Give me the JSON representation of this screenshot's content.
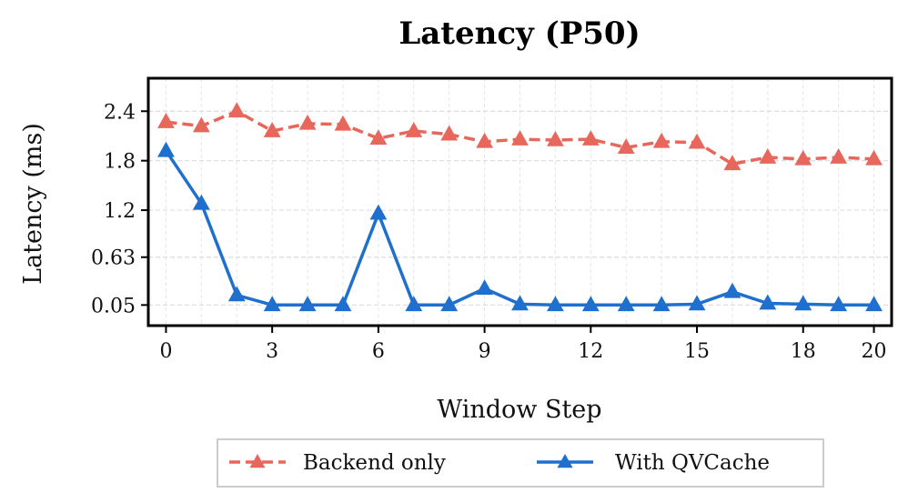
{
  "chart_data": {
    "type": "line",
    "title": "Latency (P50)",
    "xlabel": "Window Step",
    "ylabel": "Latency (ms)",
    "x": [
      0,
      1,
      2,
      3,
      4,
      5,
      6,
      7,
      8,
      9,
      10,
      11,
      12,
      13,
      14,
      15,
      16,
      17,
      18,
      19,
      20
    ],
    "xlim": [
      -0.5,
      20.5
    ],
    "ylim": [
      -0.2,
      2.8
    ],
    "xticks": [
      0,
      3,
      6,
      9,
      12,
      15,
      18,
      20
    ],
    "xtick_labels": [
      "0",
      "3",
      "6",
      "9",
      "12",
      "15",
      "18",
      "20"
    ],
    "yticks": [
      0.05,
      0.63,
      1.2,
      1.8,
      2.4
    ],
    "ytick_labels": [
      "0.05",
      "0.63",
      "1.2",
      "1.8",
      "2.4"
    ],
    "grid": true,
    "legend_position": "bottom-center",
    "series": [
      {
        "name": "Backend only",
        "color": "#e8675c",
        "line_style": "dashed",
        "marker": "triangle",
        "values": [
          2.27,
          2.22,
          2.4,
          2.16,
          2.25,
          2.24,
          2.07,
          2.16,
          2.12,
          2.03,
          2.06,
          2.05,
          2.06,
          1.96,
          2.03,
          2.02,
          1.76,
          1.84,
          1.82,
          1.84,
          1.82
        ]
      },
      {
        "name": "With QVCache",
        "color": "#1f6fcf",
        "line_style": "solid",
        "marker": "triangle",
        "values": [
          1.92,
          1.28,
          0.17,
          0.05,
          0.05,
          0.05,
          1.16,
          0.05,
          0.05,
          0.25,
          0.06,
          0.05,
          0.05,
          0.05,
          0.05,
          0.06,
          0.21,
          0.07,
          0.06,
          0.05,
          0.05
        ]
      }
    ]
  }
}
